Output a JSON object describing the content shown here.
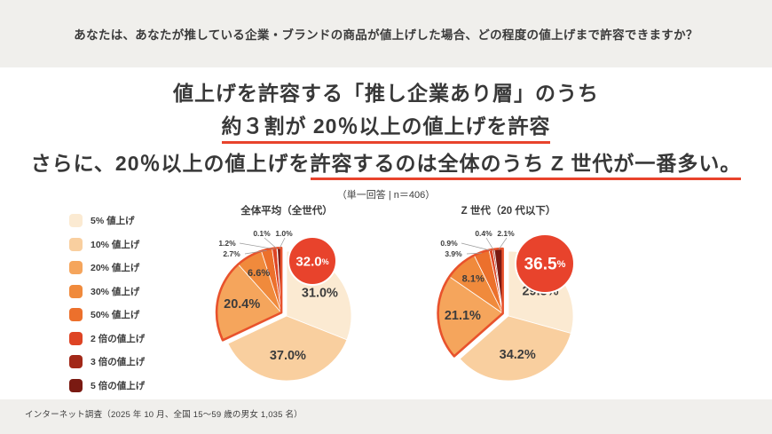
{
  "header": {
    "question": "あなたは、あなたが推している企業・ブランドの商品が値上げした場合、どの程度の値上げまで許容できますか？"
  },
  "headline": {
    "line1": "値上げを許容する「推し企業あり層」のうち",
    "line2": "約３割が 20％以上の値上げを許容",
    "line3_prefix": "さらに、20％以上の値上げを",
    "line3_underlined": "許容するのは全体のうち Z 世代が一番多い。"
  },
  "note": "（単一回答 | n＝406）",
  "footer": "インターネット調査（2025 年 10 月、全国 15～59 歳の男女 1,035 名）",
  "colors": {
    "accent_red": "#E8432C",
    "outline": "#E8522C",
    "text_dark": "#3B3B3B",
    "background": "#F0EFEC",
    "panel": "#FFFFFF"
  },
  "chart_data": {
    "type": "pie",
    "subtitle": "（単一回答 | n＝406）",
    "categories": [
      "5% 値上げ",
      "10% 値上げ",
      "20% 値上げ",
      "30% 値上げ",
      "50% 値上げ",
      "2 倍の値上げ",
      "3 倍の値上げ",
      "5 倍の値上げ"
    ],
    "colors": [
      "#FBEAD2",
      "#F9CF9F",
      "#F5A55C",
      "#F08A3C",
      "#EC702C",
      "#DE4424",
      "#A22818",
      "#7A1A12"
    ],
    "series": [
      {
        "name": "全体平均（全世代）",
        "values": [
          31.0,
          37.0,
          20.4,
          6.6,
          2.7,
          1.2,
          0.1,
          1.0
        ],
        "highlight_total": "32.0%"
      },
      {
        "name": "Z 世代（20 代以下）",
        "values": [
          29.3,
          34.2,
          21.1,
          8.1,
          3.9,
          0.9,
          0.4,
          2.1
        ],
        "highlight_total": "36.5%"
      }
    ],
    "highlight_from_index": 2,
    "legend_position": "left",
    "start_angle": "top-clockwise"
  }
}
